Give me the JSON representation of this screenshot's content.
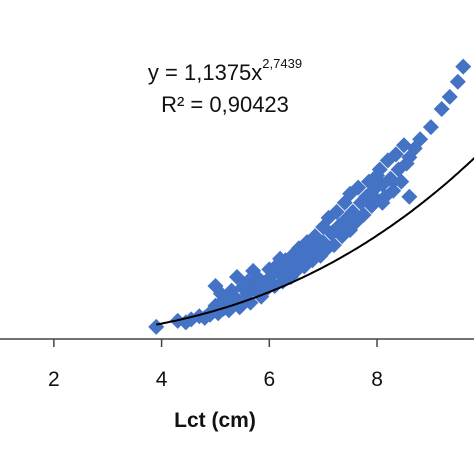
{
  "chart_data": {
    "type": "scatter",
    "title": "",
    "xlabel": "Lct (cm)",
    "ylabel": "",
    "xlim": [
      1.0,
      9.8
    ],
    "ylim": [
      0,
      1120
    ],
    "x_ticks": [
      "2",
      "4",
      "6",
      "8"
    ],
    "marker": "diamond",
    "grid": false,
    "legend": "none",
    "colors": {
      "points": "#4472c4",
      "trendline": "#000000",
      "axis": "#444444"
    },
    "trendline": {
      "type": "power",
      "a": 1.1375,
      "b": 2.7439,
      "r2": 0.90423,
      "equation_text": "y = 1,1375x",
      "exponent_text": "2,7439",
      "r2_label": "R² = 0,90423"
    },
    "series": [
      {
        "x": [
          3.9,
          4.3,
          4.45,
          4.55,
          4.7,
          4.8,
          4.9,
          4.95,
          5.0,
          5.05,
          5.1,
          5.1,
          5.15,
          5.2,
          5.25,
          5.3,
          5.3,
          5.35,
          5.4,
          5.45,
          5.5,
          5.55,
          5.6,
          5.6,
          5.65,
          5.7,
          5.75,
          5.8,
          5.85,
          5.9,
          5.95,
          6.0,
          6.0,
          6.05,
          6.1,
          6.15,
          6.2,
          6.25,
          6.3,
          6.35,
          6.4,
          6.45,
          6.5,
          6.5,
          6.55,
          6.6,
          6.65,
          6.7,
          6.75,
          6.8,
          6.85,
          6.9,
          6.95,
          7.0,
          7.0,
          7.05,
          7.1,
          7.15,
          7.2,
          7.25,
          7.3,
          7.35,
          7.4,
          7.45,
          7.5,
          7.5,
          7.55,
          7.6,
          7.65,
          7.7,
          7.75,
          7.8,
          7.85,
          7.9,
          7.95,
          8.0,
          8.0,
          8.05,
          8.1,
          8.15,
          8.2,
          8.25,
          8.3,
          8.35,
          8.4,
          8.45,
          8.5,
          8.55,
          8.6,
          8.7,
          8.8,
          9.0,
          9.2,
          9.35,
          9.5,
          9.6,
          5.0,
          5.4,
          5.7,
          6.2,
          6.6,
          7.2,
          7.6,
          8.1,
          8.3,
          8.6
        ],
        "y": [
          40,
          60,
          55,
          65,
          75,
          70,
          80,
          95,
          110,
          85,
          150,
          120,
          100,
          130,
          95,
          160,
          115,
          140,
          125,
          105,
          170,
          135,
          190,
          150,
          120,
          175,
          160,
          200,
          140,
          185,
          165,
          230,
          190,
          210,
          175,
          245,
          215,
          190,
          260,
          230,
          205,
          280,
          250,
          225,
          300,
          270,
          240,
          320,
          290,
          260,
          340,
          305,
          275,
          370,
          320,
          295,
          400,
          350,
          310,
          420,
          375,
          340,
          450,
          400,
          360,
          480,
          420,
          385,
          500,
          450,
          410,
          470,
          520,
          440,
          495,
          540,
          460,
          560,
          510,
          470,
          590,
          530,
          490,
          610,
          560,
          520,
          640,
          580,
          600,
          630,
          660,
          700,
          760,
          800,
          850,
          900,
          175,
          205,
          225,
          265,
          300,
          355,
          395,
          450,
          520,
          470
        ]
      }
    ]
  }
}
